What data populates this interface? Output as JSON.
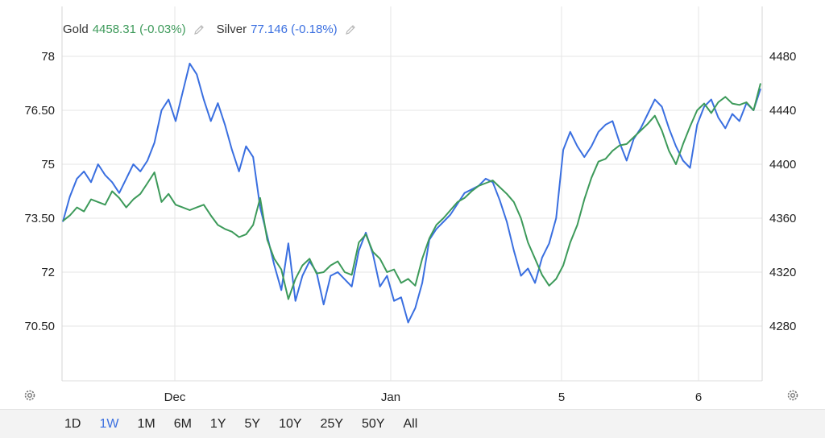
{
  "legend": {
    "gold_label": "Gold",
    "gold_value": "4458.31 (-0.03%)",
    "silver_label": "Silver",
    "silver_value": "77.146 (-0.18%)"
  },
  "range_buttons": [
    "1D",
    "1W",
    "1M",
    "6M",
    "1Y",
    "5Y",
    "10Y",
    "25Y",
    "50Y",
    "All"
  ],
  "active_range": "1W",
  "colors": {
    "gold": "#3d9a5a",
    "silver": "#3a6fe0",
    "grid": "#e6e6e6"
  },
  "icons": {
    "edit": "pencil-icon",
    "settings": "gear-icon"
  },
  "chart_data": {
    "type": "line",
    "x_ticks": [
      "Dec",
      "Jan",
      "5",
      "6"
    ],
    "left_axis": {
      "ticks": [
        "78",
        "76.50",
        "75",
        "73.50",
        "72",
        "70.50"
      ],
      "range": [
        69.0,
        78.0
      ],
      "series": "Silver"
    },
    "right_axis": {
      "ticks": [
        "4480",
        "4440",
        "4400",
        "4360",
        "4320",
        "4280"
      ],
      "range": [
        4240,
        4480
      ],
      "series": "Gold"
    },
    "grid": true,
    "legend_position": "top-left",
    "series": [
      {
        "name": "Silver",
        "axis": "left",
        "values": [
          73.4,
          74.1,
          74.6,
          74.8,
          74.5,
          75.0,
          74.7,
          74.5,
          74.2,
          74.6,
          75.0,
          74.8,
          75.1,
          75.6,
          76.5,
          76.8,
          76.2,
          77.0,
          77.8,
          77.5,
          76.8,
          76.2,
          76.7,
          76.1,
          75.4,
          74.8,
          75.5,
          75.2,
          73.8,
          73.0,
          72.2,
          71.5,
          72.8,
          71.2,
          71.9,
          72.3,
          72.0,
          71.1,
          71.9,
          72.0,
          71.8,
          71.6,
          72.6,
          73.1,
          72.5,
          71.6,
          71.9,
          71.2,
          71.3,
          70.6,
          71.0,
          71.7,
          72.9,
          73.2,
          73.4,
          73.6,
          73.9,
          74.2,
          74.3,
          74.4,
          74.6,
          74.5,
          74.0,
          73.4,
          72.6,
          71.9,
          72.1,
          71.7,
          72.4,
          72.8,
          73.5,
          75.4,
          75.9,
          75.5,
          75.2,
          75.5,
          75.9,
          76.1,
          76.2,
          75.6,
          75.1,
          75.7,
          76.0,
          76.4,
          76.8,
          76.6,
          76.0,
          75.5,
          75.1,
          74.9,
          76.1,
          76.6,
          76.8,
          76.3,
          76.0,
          76.4,
          76.2,
          76.7,
          76.5,
          77.1
        ]
      },
      {
        "name": "Gold",
        "axis": "right",
        "values": [
          4358,
          4362,
          4368,
          4365,
          4374,
          4372,
          4370,
          4380,
          4375,
          4368,
          4374,
          4378,
          4386,
          4394,
          4372,
          4378,
          4370,
          4368,
          4366,
          4368,
          4370,
          4362,
          4355,
          4352,
          4350,
          4346,
          4348,
          4355,
          4375,
          4344,
          4330,
          4322,
          4300,
          4315,
          4325,
          4330,
          4319,
          4320,
          4325,
          4328,
          4320,
          4318,
          4342,
          4348,
          4335,
          4330,
          4320,
          4322,
          4312,
          4315,
          4310,
          4330,
          4345,
          4355,
          4360,
          4366,
          4372,
          4375,
          4380,
          4384,
          4386,
          4388,
          4383,
          4378,
          4372,
          4360,
          4342,
          4330,
          4318,
          4310,
          4315,
          4325,
          4342,
          4355,
          4374,
          4390,
          4402,
          4404,
          4410,
          4414,
          4415,
          4420,
          4425,
          4430,
          4436,
          4425,
          4410,
          4400,
          4415,
          4428,
          4440,
          4445,
          4438,
          4446,
          4450,
          4445,
          4444,
          4446,
          4440,
          4460
        ]
      }
    ]
  }
}
